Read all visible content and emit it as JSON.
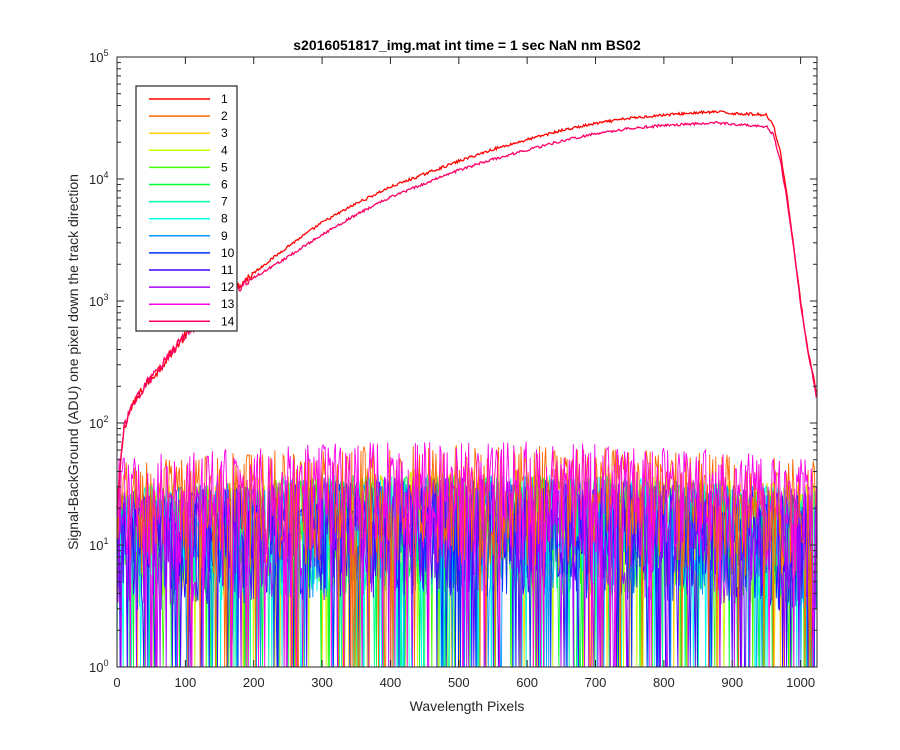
{
  "chart_data": {
    "type": "line",
    "title": "s2016051817_img.mat int time = 1 sec  NaN nm BS02",
    "xlabel": "Wavelength Pixels",
    "ylabel": "Signal-BackGround (ADU) one pixel down the track direction",
    "xlim": [
      0,
      1024
    ],
    "ylim": [
      1,
      100000
    ],
    "yscale": "log",
    "x_ticks": [
      "0",
      "100",
      "200",
      "300",
      "400",
      "500",
      "600",
      "700",
      "800",
      "900",
      "1000"
    ],
    "y_ticks": [
      {
        "base": "10",
        "exp": "0"
      },
      {
        "base": "10",
        "exp": "1"
      },
      {
        "base": "10",
        "exp": "2"
      },
      {
        "base": "10",
        "exp": "3"
      },
      {
        "base": "10",
        "exp": "4"
      },
      {
        "base": "10",
        "exp": "5"
      }
    ],
    "grid": false,
    "legend_position": "top-left",
    "series": [
      {
        "name": "1",
        "color": "#ff0000",
        "kind": "signal",
        "x": [
          0,
          5,
          10,
          20,
          40,
          60,
          80,
          100,
          130,
          160,
          200,
          250,
          300,
          350,
          400,
          450,
          500,
          550,
          600,
          650,
          700,
          750,
          800,
          850,
          880,
          900,
          930,
          950,
          960,
          970,
          980,
          990,
          1000,
          1010,
          1020,
          1024
        ],
        "y": [
          20,
          45,
          90,
          130,
          200,
          270,
          380,
          520,
          780,
          1100,
          1700,
          2800,
          4400,
          6300,
          8600,
          11000,
          14000,
          17500,
          21000,
          25000,
          28500,
          31500,
          33500,
          35000,
          35500,
          34500,
          34000,
          33500,
          28000,
          17000,
          7500,
          2800,
          1000,
          420,
          220,
          160
        ]
      },
      {
        "name": "2",
        "color": "#ff6a00",
        "kind": "noise",
        "level": 28
      },
      {
        "name": "3",
        "color": "#ffd000",
        "kind": "noise",
        "level": 18
      },
      {
        "name": "4",
        "color": "#c8ff00",
        "kind": "noise",
        "level": 17
      },
      {
        "name": "5",
        "color": "#44ff00",
        "kind": "noise",
        "level": 16
      },
      {
        "name": "6",
        "color": "#00ff33",
        "kind": "noise",
        "level": 16
      },
      {
        "name": "7",
        "color": "#00ffa0",
        "kind": "noise",
        "level": 16
      },
      {
        "name": "8",
        "color": "#00ffee",
        "kind": "noise",
        "level": 17
      },
      {
        "name": "9",
        "color": "#0099ff",
        "kind": "noise",
        "level": 16
      },
      {
        "name": "10",
        "color": "#0030ff",
        "kind": "noise",
        "level": 15
      },
      {
        "name": "11",
        "color": "#4400ff",
        "kind": "noise",
        "level": 15
      },
      {
        "name": "12",
        "color": "#aa00ff",
        "kind": "noise",
        "level": 16
      },
      {
        "name": "13",
        "color": "#ff00e6",
        "kind": "noise",
        "level": 30
      },
      {
        "name": "14",
        "color": "#ff0066",
        "kind": "signal",
        "x": [
          0,
          5,
          10,
          20,
          40,
          60,
          80,
          100,
          130,
          160,
          200,
          250,
          300,
          350,
          400,
          450,
          500,
          550,
          600,
          650,
          700,
          750,
          800,
          850,
          880,
          900,
          930,
          950,
          960,
          970,
          980,
          990,
          1000,
          1010,
          1020,
          1024
        ],
        "y": [
          20,
          45,
          90,
          130,
          200,
          270,
          380,
          520,
          780,
          1100,
          1550,
          2300,
          3500,
          5100,
          7100,
          9200,
          11800,
          14500,
          17300,
          20500,
          23500,
          26000,
          27500,
          28500,
          28800,
          28200,
          27500,
          27000,
          23000,
          14500,
          6800,
          2700,
          950,
          400,
          210,
          150
        ]
      }
    ]
  }
}
